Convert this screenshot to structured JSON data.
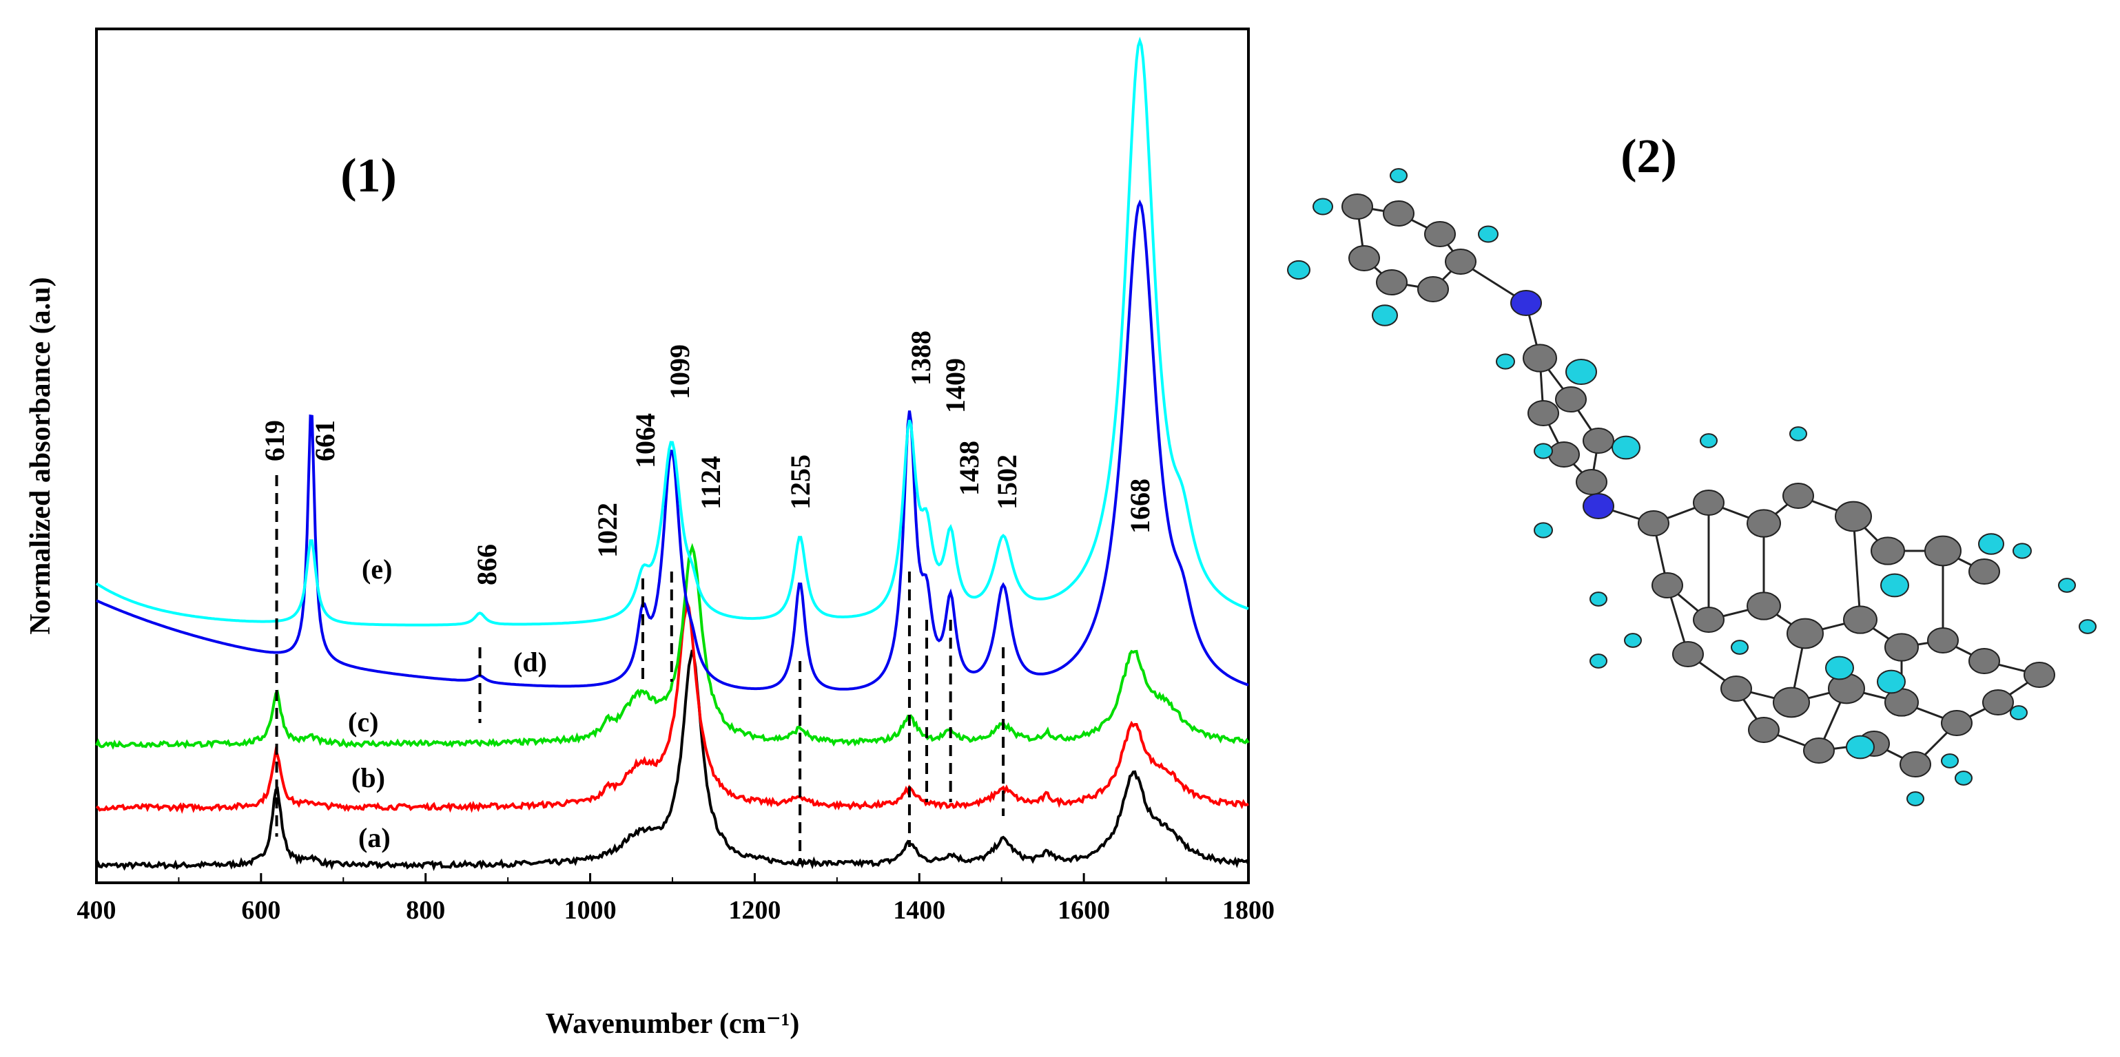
{
  "figure": {
    "panel_labels": [
      "(1)",
      "(2)"
    ]
  },
  "chart_data": {
    "type": "line",
    "title": "",
    "xlabel": "Wavenumber (cm⁻¹)",
    "ylabel": "Normalized absorbance  (a.u)",
    "xlim": [
      400,
      1800
    ],
    "ylim": [
      0,
      1.0
    ],
    "x_ticks": [
      400,
      600,
      800,
      1000,
      1200,
      1400,
      1600,
      1800
    ],
    "y_ticks_shown": false,
    "grid": false,
    "series": [
      {
        "label": "(a)",
        "color": "#000000",
        "baseline": 0.02,
        "peaks": [
          [
            619,
            0.09,
            7
          ],
          [
            661,
            0.008,
            8
          ],
          [
            1060,
            0.03,
            28
          ],
          [
            1124,
            0.245,
            14
          ],
          [
            1388,
            0.025,
            10
          ],
          [
            1438,
            0.01,
            10
          ],
          [
            1502,
            0.028,
            14
          ],
          [
            1555,
            0.012,
            6
          ],
          [
            1660,
            0.1,
            18
          ],
          [
            1700,
            0.03,
            25
          ]
        ]
      },
      {
        "label": "(b)",
        "color": "#ff0000",
        "baseline": 0.088,
        "peaks": [
          [
            619,
            0.065,
            7
          ],
          [
            661,
            0.005,
            8
          ],
          [
            1022,
            0.01,
            6
          ],
          [
            1060,
            0.04,
            25
          ],
          [
            1118,
            0.23,
            14
          ],
          [
            1255,
            0.01,
            10
          ],
          [
            1388,
            0.02,
            10
          ],
          [
            1502,
            0.02,
            15
          ],
          [
            1555,
            0.01,
            6
          ],
          [
            1660,
            0.09,
            18
          ],
          [
            1700,
            0.03,
            25
          ]
        ]
      },
      {
        "label": "(c)",
        "color": "#00dd00",
        "baseline": 0.162,
        "peaks": [
          [
            619,
            0.06,
            7
          ],
          [
            661,
            0.008,
            8
          ],
          [
            1022,
            0.012,
            6
          ],
          [
            1060,
            0.05,
            25
          ],
          [
            1124,
            0.225,
            14
          ],
          [
            1255,
            0.015,
            10
          ],
          [
            1388,
            0.03,
            11
          ],
          [
            1438,
            0.012,
            10
          ],
          [
            1502,
            0.02,
            14
          ],
          [
            1555,
            0.01,
            6
          ],
          [
            1660,
            0.1,
            18
          ],
          [
            1700,
            0.035,
            25
          ]
        ]
      },
      {
        "label": "(d)",
        "color": "#0000ee",
        "baseline": 0.21,
        "peaks": [
          [
            661,
            0.3,
            5
          ],
          [
            866,
            0.008,
            8
          ],
          [
            1064,
            0.07,
            8
          ],
          [
            1099,
            0.28,
            13
          ],
          [
            1124,
            0.02,
            8
          ],
          [
            1255,
            0.13,
            8
          ],
          [
            1388,
            0.32,
            9
          ],
          [
            1409,
            0.08,
            8
          ],
          [
            1438,
            0.1,
            8
          ],
          [
            1502,
            0.12,
            12
          ],
          [
            1668,
            0.58,
            24
          ],
          [
            1720,
            0.05,
            15
          ]
        ],
        "decay": [
          0.12,
          280
        ]
      },
      {
        "label": "(e)",
        "color": "#00ffff",
        "baseline": 0.3,
        "peaks": [
          [
            661,
            0.1,
            7
          ],
          [
            866,
            0.014,
            8
          ],
          [
            1064,
            0.04,
            10
          ],
          [
            1099,
            0.21,
            14
          ],
          [
            1124,
            0.02,
            8
          ],
          [
            1255,
            0.1,
            9
          ],
          [
            1388,
            0.22,
            10
          ],
          [
            1409,
            0.08,
            9
          ],
          [
            1438,
            0.09,
            9
          ],
          [
            1502,
            0.09,
            14
          ],
          [
            1668,
            0.68,
            22
          ],
          [
            1720,
            0.06,
            15
          ]
        ],
        "decay": [
          0.05,
          80
        ]
      }
    ],
    "peak_annotations": [
      "619",
      "661",
      "866",
      "1022",
      "1064",
      "1099",
      "1124",
      "1255",
      "1388",
      "1409",
      "1438",
      "1502",
      "1668"
    ]
  }
}
